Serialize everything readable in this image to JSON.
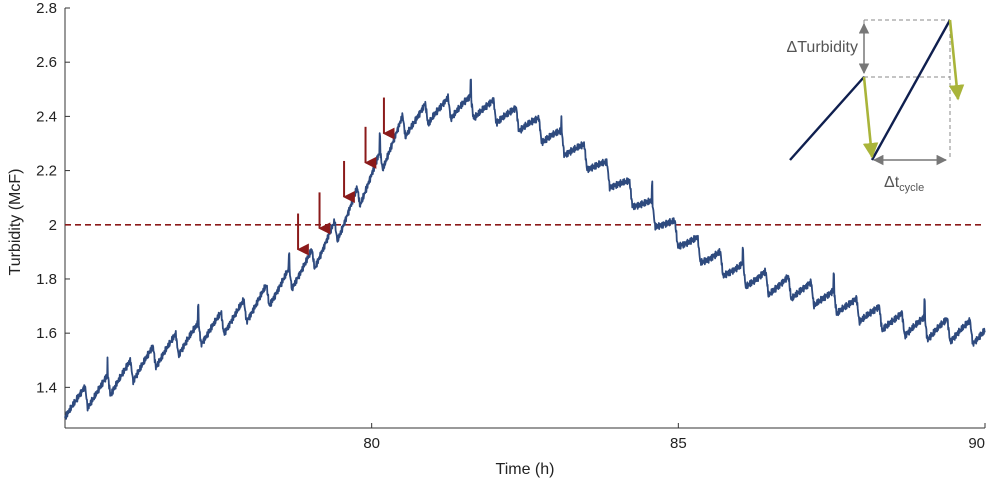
{
  "chart_data": {
    "type": "line",
    "xlabel": "Time (h)",
    "ylabel": "Turbidity (McF)",
    "xlim": [
      75,
      90
    ],
    "ylim": [
      1.25,
      2.8
    ],
    "xticks": [
      80,
      85,
      90
    ],
    "yticks": [
      1.4,
      1.6,
      1.8,
      2,
      2.2,
      2.4,
      2.6,
      2.8
    ],
    "xtick_labels": [
      "80",
      "85",
      "90"
    ],
    "ytick_labels": [
      "1.4",
      "1.6",
      "1.8",
      "2",
      "2.2",
      "2.4",
      "2.6",
      "2.8"
    ],
    "grid": false,
    "threshold": {
      "y": 2.0,
      "color": "#8b1a1a",
      "style": "dashed"
    },
    "series": [
      {
        "color": "#2e4a7e",
        "x": [
          75.0,
          75.5,
          76.0,
          76.5,
          77.0,
          77.5,
          78.0,
          78.5,
          79.0,
          79.5,
          80.0,
          80.5,
          81.0,
          81.5,
          82.0,
          82.5,
          83.0,
          83.5,
          84.0,
          84.5,
          85.0,
          85.5,
          86.0,
          86.5,
          87.0,
          87.5,
          88.0,
          88.5,
          89.0,
          89.5,
          90.0
        ],
        "y": [
          1.33,
          1.38,
          1.45,
          1.52,
          1.58,
          1.63,
          1.69,
          1.77,
          1.86,
          2.0,
          2.18,
          2.36,
          2.42,
          2.44,
          2.42,
          2.38,
          2.32,
          2.25,
          2.16,
          2.06,
          1.96,
          1.88,
          1.82,
          1.78,
          1.76,
          1.72,
          1.68,
          1.64,
          1.62,
          1.61,
          1.6
        ]
      }
    ],
    "annotations": {
      "arrows_at_peaks_x": [
        78.8,
        79.15,
        79.55,
        79.9,
        80.2
      ],
      "inset_labels": {
        "delta_turbidity": "ΔTurbidity",
        "delta_t_prefix": "Δt",
        "delta_t_subscript": "cycle"
      }
    }
  }
}
